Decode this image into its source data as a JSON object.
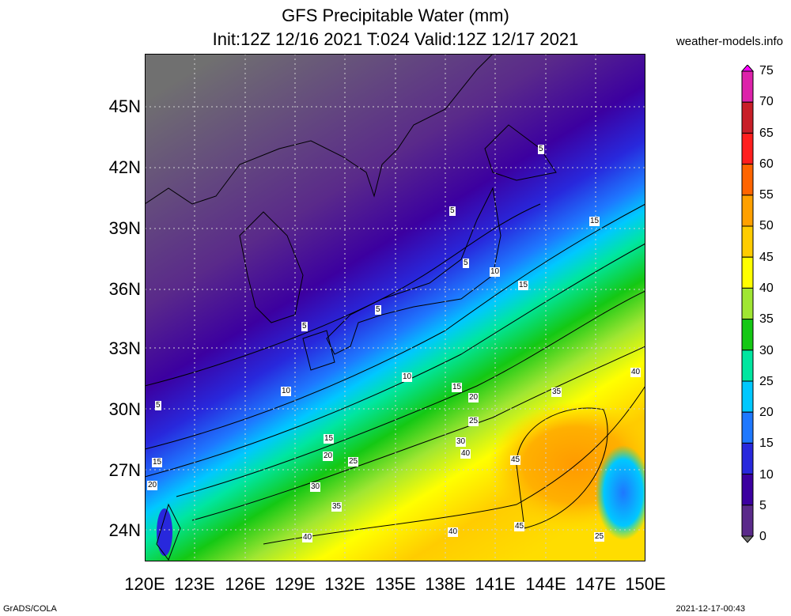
{
  "header": {
    "title": "GFS Precipitable Water (mm)",
    "subtitle": "Init:12Z 12/16 2021 T:024 Valid:12Z 12/17 2021",
    "site": "weather-models.info"
  },
  "footer": {
    "left": "GrADS/COLA",
    "right": "2021-12-17-00:43"
  },
  "axes": {
    "lat_labels": [
      "45N",
      "42N",
      "39N",
      "36N",
      "33N",
      "30N",
      "27N",
      "24N"
    ],
    "lon_labels": [
      "120E",
      "123E",
      "126E",
      "129E",
      "132E",
      "135E",
      "138E",
      "141E",
      "144E",
      "147E",
      "150E"
    ],
    "lat_range": [
      22.5,
      47.5
    ],
    "lon_range": [
      120,
      150
    ]
  },
  "colorbar": {
    "labels": [
      "75",
      "70",
      "65",
      "60",
      "55",
      "50",
      "45",
      "40",
      "35",
      "30",
      "25",
      "20",
      "15",
      "10",
      "5",
      "0"
    ],
    "colors": [
      "#ff00ff",
      "#dd22aa",
      "#c81e28",
      "#ff1e1e",
      "#ff6400",
      "#ffa000",
      "#ffcc00",
      "#ffff00",
      "#a0e632",
      "#14c814",
      "#00e6a0",
      "#00c8ff",
      "#1e78ff",
      "#2828dc",
      "#3c00a0",
      "#5a2a8a",
      "#707070"
    ]
  },
  "contour_labels": [
    {
      "text": "5"
    },
    {
      "text": "5"
    },
    {
      "text": "5"
    },
    {
      "text": "5"
    },
    {
      "text": "5"
    },
    {
      "text": "5"
    },
    {
      "text": "10"
    },
    {
      "text": "10"
    },
    {
      "text": "10"
    },
    {
      "text": "15"
    },
    {
      "text": "15"
    },
    {
      "text": "15"
    },
    {
      "text": "15"
    },
    {
      "text": "15"
    },
    {
      "text": "20"
    },
    {
      "text": "20"
    },
    {
      "text": "20"
    },
    {
      "text": "25"
    },
    {
      "text": "25"
    },
    {
      "text": "25"
    },
    {
      "text": "30"
    },
    {
      "text": "30"
    },
    {
      "text": "35"
    },
    {
      "text": "35"
    },
    {
      "text": "40"
    },
    {
      "text": "40"
    },
    {
      "text": "40"
    },
    {
      "text": "40"
    },
    {
      "text": "45"
    },
    {
      "text": "45"
    }
  ]
}
